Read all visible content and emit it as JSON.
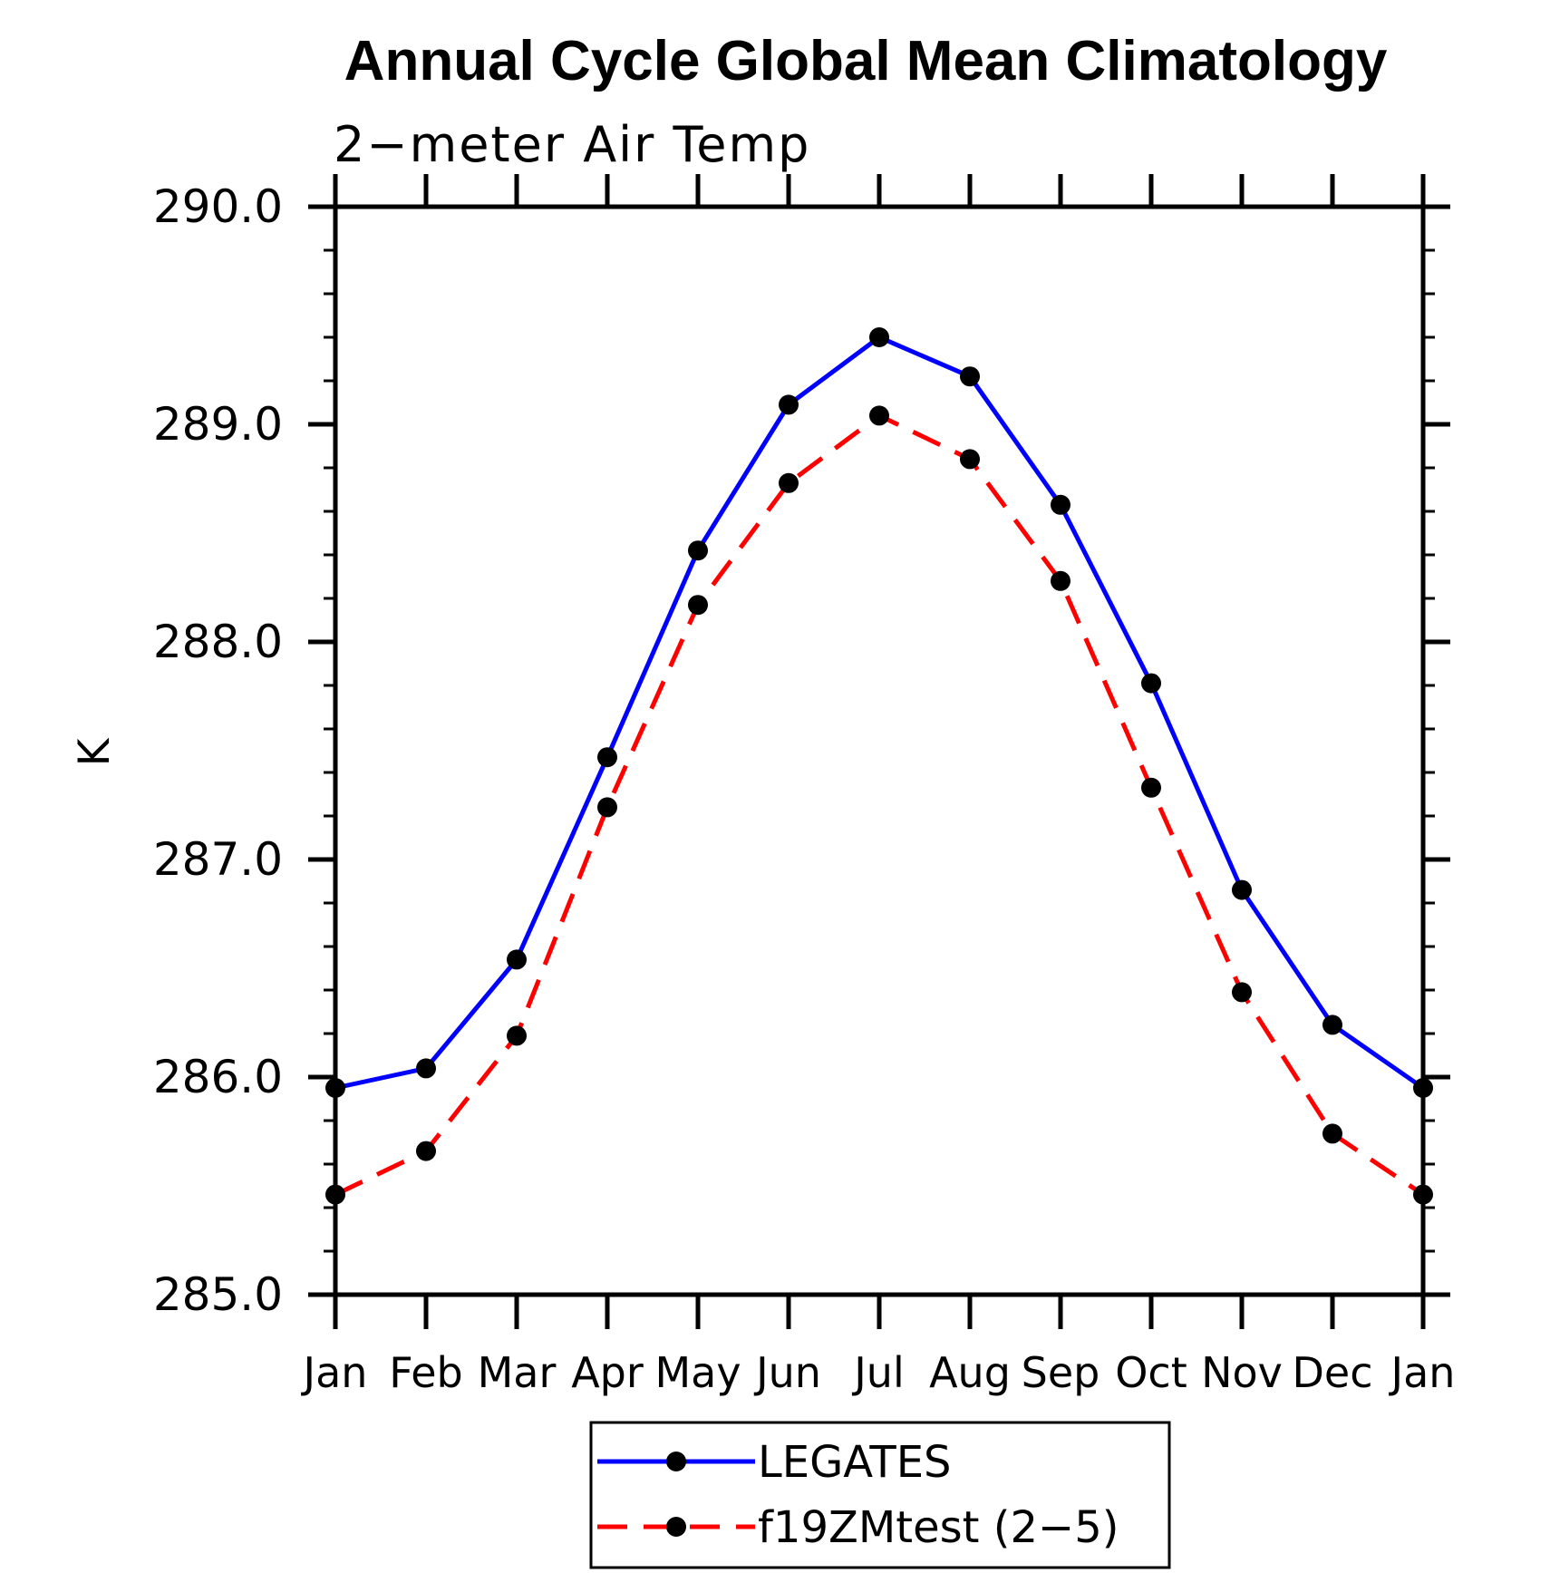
{
  "chart_data": {
    "type": "line",
    "title": "Annual Cycle Global Mean Climatology",
    "subtitle": "2−meter Air Temp",
    "ylabel": "K",
    "xlabel": "",
    "categories": [
      "Jan",
      "Feb",
      "Mar",
      "Apr",
      "May",
      "Jun",
      "Jul",
      "Aug",
      "Sep",
      "Oct",
      "Nov",
      "Dec",
      "Jan"
    ],
    "ylim": [
      285.0,
      290.0
    ],
    "yticks": [
      285.0,
      286.0,
      287.0,
      288.0,
      289.0,
      290.0
    ],
    "ytick_labels": [
      "285.0",
      "286.0",
      "287.0",
      "288.0",
      "289.0",
      "290.0"
    ],
    "yminor_step": 0.2,
    "grid": false,
    "frame": true,
    "legend_position": "bottom-center",
    "marker": "filled-circle",
    "marker_color": "#000000",
    "series": [
      {
        "name": "LEGATES",
        "color": "#0000FF",
        "line_style": "solid",
        "values": [
          285.95,
          286.04,
          286.54,
          287.47,
          288.42,
          289.09,
          289.4,
          289.22,
          288.63,
          287.81,
          286.86,
          286.24,
          285.95
        ]
      },
      {
        "name": "f19ZMtest (2−5)",
        "color": "#FF0000",
        "line_style": "dashed",
        "values": [
          285.46,
          285.66,
          286.19,
          287.24,
          288.17,
          288.73,
          289.04,
          288.84,
          288.28,
          287.33,
          286.39,
          285.74,
          285.46
        ]
      }
    ]
  }
}
